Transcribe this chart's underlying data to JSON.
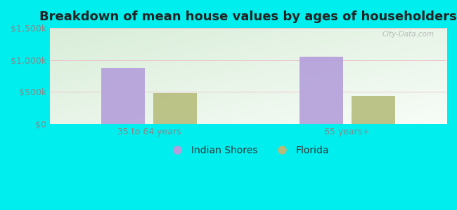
{
  "title": "Breakdown of mean house values by ages of householders",
  "categories": [
    "35 to 64 years",
    "65 years+"
  ],
  "series": [
    {
      "label": "Indian Shores",
      "values": [
        875000,
        1050000
      ],
      "color": "#b39ddb"
    },
    {
      "label": "Florida",
      "values": [
        480000,
        440000
      ],
      "color": "#b5bc7a"
    }
  ],
  "ylim": [
    0,
    1500000
  ],
  "yticks": [
    0,
    500000,
    1000000,
    1500000
  ],
  "ytick_labels": [
    "$0",
    "$500k",
    "$1,000k",
    "$1,500k"
  ],
  "background_outer": "#00eeee",
  "watermark": "City-Data.com",
  "bar_width": 0.22,
  "title_fontsize": 13,
  "tick_fontsize": 9,
  "legend_fontsize": 10,
  "tick_color": "#888888",
  "title_color": "#222222"
}
